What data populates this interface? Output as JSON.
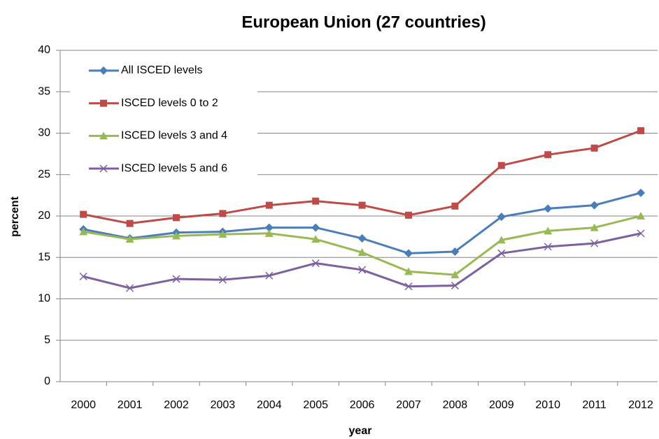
{
  "chart_data": {
    "type": "line",
    "title": "European Union (27 countries)",
    "x_label": "year",
    "y_label": "percent",
    "categories": [
      "2000",
      "2001",
      "2002",
      "2003",
      "2004",
      "2005",
      "2006",
      "2007",
      "2008",
      "2009",
      "2010",
      "2011",
      "2012"
    ],
    "series": [
      {
        "name": "All ISCED levels",
        "color": "#4a7ebb",
        "marker": "diamond",
        "values": [
          18.4,
          17.3,
          18.0,
          18.1,
          18.6,
          18.6,
          17.3,
          15.5,
          15.7,
          19.9,
          20.9,
          21.3,
          22.8
        ]
      },
      {
        "name": "ISCED levels 0 to 2",
        "color": "#be4b48",
        "marker": "square",
        "values": [
          20.2,
          19.1,
          19.8,
          20.3,
          21.3,
          21.8,
          21.3,
          20.1,
          21.2,
          26.1,
          27.4,
          28.2,
          30.3
        ]
      },
      {
        "name": "ISCED levels 3 and 4",
        "color": "#98b954",
        "marker": "triangle",
        "values": [
          18.1,
          17.2,
          17.6,
          17.8,
          17.9,
          17.2,
          15.6,
          13.3,
          12.9,
          17.1,
          18.2,
          18.6,
          20.0
        ]
      },
      {
        "name": "ISCED levels 5 and 6",
        "color": "#7d60a0",
        "marker": "x",
        "values": [
          12.7,
          11.3,
          12.4,
          12.3,
          12.8,
          14.3,
          13.5,
          11.5,
          11.6,
          15.5,
          16.3,
          16.7,
          17.9
        ]
      }
    ],
    "ylim": [
      0,
      40
    ],
    "yticks": [
      0,
      5,
      10,
      15,
      20,
      25,
      30,
      35,
      40
    ],
    "grid": true,
    "legend": "top-left"
  }
}
